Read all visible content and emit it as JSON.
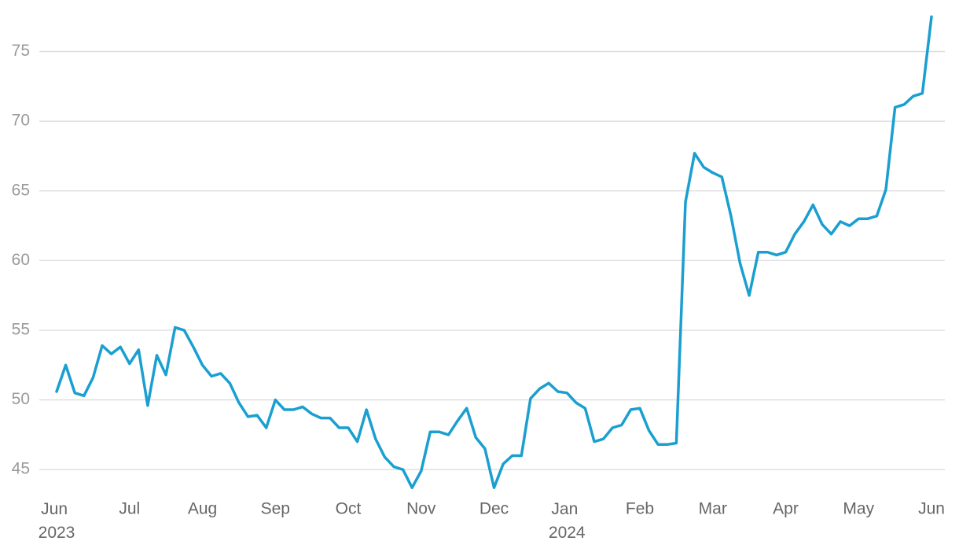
{
  "chart_data": {
    "type": "line",
    "categories": [
      "Jun 2023",
      null,
      null,
      null,
      null,
      null,
      null,
      null,
      "Jul",
      null,
      null,
      null,
      null,
      null,
      null,
      null,
      "Aug",
      null,
      null,
      null,
      null,
      null,
      null,
      null,
      "Sep",
      null,
      null,
      null,
      null,
      null,
      null,
      null,
      "Oct",
      null,
      null,
      null,
      null,
      null,
      null,
      null,
      "Nov",
      null,
      null,
      null,
      null,
      null,
      null,
      null,
      "Dec",
      null,
      null,
      null,
      null,
      null,
      null,
      null,
      "Jan 2024",
      null,
      null,
      null,
      null,
      null,
      null,
      null,
      "Feb",
      null,
      null,
      null,
      null,
      null,
      null,
      null,
      "Mar",
      null,
      null,
      null,
      null,
      null,
      null,
      null,
      "Apr",
      null,
      null,
      null,
      null,
      null,
      null,
      null,
      "May",
      null,
      null,
      null,
      null,
      null,
      null,
      null,
      "Jun"
    ],
    "series": [
      {
        "color": "#1a9fd0",
        "values": [
          50.6,
          52.5,
          50.5,
          50.3,
          51.6,
          53.9,
          53.3,
          53.8,
          52.6,
          53.6,
          49.6,
          53.2,
          51.8,
          55.2,
          55.0,
          53.8,
          52.5,
          51.7,
          51.9,
          51.2,
          49.8,
          48.8,
          48.9,
          48.0,
          50.0,
          49.3,
          49.3,
          49.5,
          49.0,
          48.7,
          48.7,
          48.0,
          48.0,
          47.0,
          49.3,
          47.2,
          45.9,
          45.2,
          45.0,
          43.7,
          44.9,
          47.7,
          47.7,
          47.5,
          48.5,
          49.4,
          47.3,
          46.5,
          43.7,
          45.4,
          46.0,
          46.0,
          50.1,
          50.8,
          51.2,
          50.6,
          50.5,
          49.8,
          49.4,
          47.0,
          47.2,
          48.0,
          48.2,
          49.3,
          49.4,
          47.8,
          46.8,
          46.8,
          46.9,
          64.2,
          67.7,
          66.7,
          66.3,
          66.0,
          63.2,
          59.8,
          57.5,
          60.6,
          60.6,
          60.4,
          60.6,
          61.9,
          62.8,
          64.0,
          62.6,
          61.9,
          62.8,
          62.5,
          63.0,
          63.0,
          63.2,
          65.1,
          71.0,
          71.2,
          71.8,
          72.0,
          77.5
        ]
      }
    ],
    "ylim": [
      43.6,
      78.7
    ],
    "yticks": [
      45,
      50,
      55,
      60,
      65,
      70,
      75
    ],
    "grid": true
  }
}
